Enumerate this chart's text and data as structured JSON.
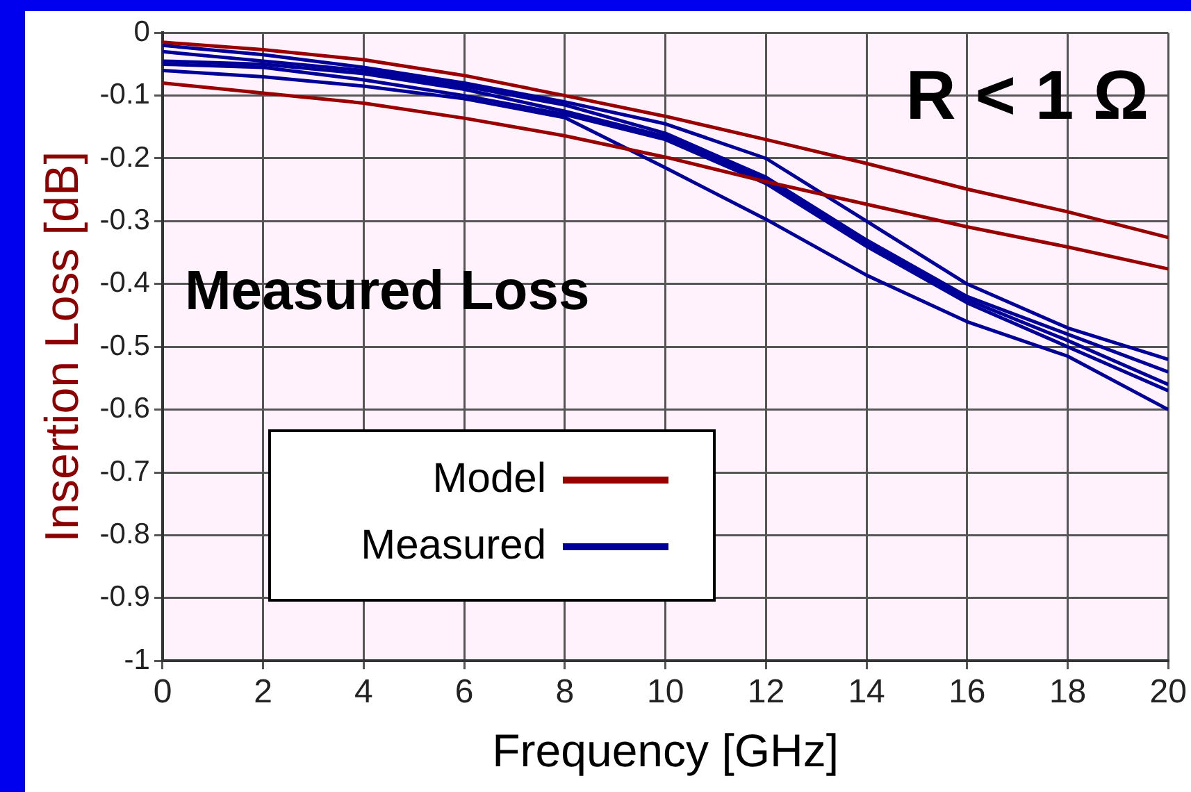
{
  "chart_data": {
    "type": "line",
    "xlabel": "Frequency [GHz]",
    "ylabel": "Insertion Loss [dB]",
    "annotations": [
      "R < 1 Ω",
      "Measured Loss"
    ],
    "x": [
      0,
      2,
      4,
      6,
      8,
      10,
      12,
      14,
      16,
      18,
      20
    ],
    "series": [
      {
        "name": "Model",
        "color": "#990000",
        "values": [
          -0.015,
          -0.027,
          -0.043,
          -0.068,
          -0.1,
          -0.133,
          -0.17,
          -0.208,
          -0.249,
          -0.285,
          -0.326
        ]
      },
      {
        "color": "#990000",
        "values": [
          -0.08,
          -0.096,
          -0.112,
          -0.136,
          -0.164,
          -0.198,
          -0.237,
          -0.273,
          -0.309,
          -0.341,
          -0.376
        ]
      },
      {
        "name": "Measured",
        "color": "#000099",
        "values": [
          -0.02,
          -0.035,
          -0.055,
          -0.08,
          -0.11,
          -0.145,
          -0.2,
          -0.3,
          -0.4,
          -0.47,
          -0.52
        ]
      },
      {
        "color": "#000099",
        "values": [
          -0.03,
          -0.045,
          -0.06,
          -0.085,
          -0.115,
          -0.16,
          -0.23,
          -0.33,
          -0.42,
          -0.48,
          -0.54
        ]
      },
      {
        "color": "#000099",
        "values": [
          -0.045,
          -0.05,
          -0.065,
          -0.09,
          -0.125,
          -0.165,
          -0.235,
          -0.335,
          -0.425,
          -0.49,
          -0.56
        ]
      },
      {
        "color": "#000099",
        "values": [
          -0.05,
          -0.055,
          -0.075,
          -0.1,
          -0.13,
          -0.17,
          -0.24,
          -0.34,
          -0.43,
          -0.5,
          -0.57
        ]
      },
      {
        "color": "#000099",
        "values": [
          -0.06,
          -0.07,
          -0.085,
          -0.105,
          -0.135,
          -0.215,
          -0.297,
          -0.386,
          -0.46,
          -0.515,
          -0.6
        ]
      }
    ],
    "xlim": [
      0,
      20
    ],
    "xticks": [
      0,
      2,
      4,
      6,
      8,
      10,
      12,
      14,
      16,
      18,
      20
    ],
    "ylim": [
      -1,
      0
    ],
    "yticks": [
      0,
      -0.1,
      -0.2,
      -0.3,
      -0.4,
      -0.5,
      -0.6,
      -0.7,
      -0.8,
      -0.9,
      -1
    ],
    "grid": true,
    "legend": "bottom left",
    "marker": "none",
    "line_style": "solid"
  }
}
